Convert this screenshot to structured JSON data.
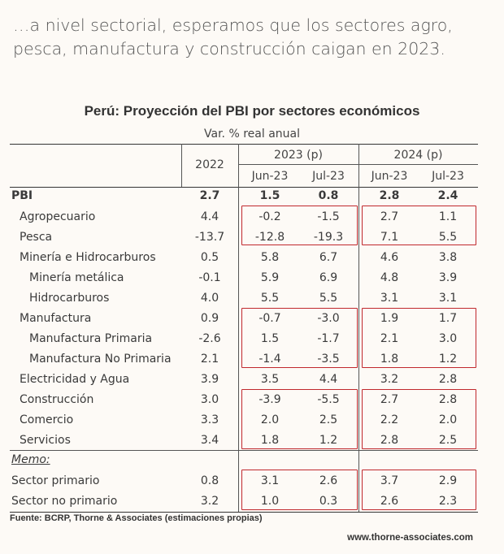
{
  "headline": "…a nivel sectorial, esperamos que los sectores agro, pesca, manufactura y construcción caigan en 2023.",
  "table": {
    "title": "Perú: Proyección del PBI por sectores económicos",
    "subtitle": "Var. % real anual",
    "col_2022": "2022",
    "group_2023": "2023 (p)",
    "group_2024": "2024 (p)",
    "sub_jun23_a": "Jun-23",
    "sub_jul23_a": "Jul-23",
    "sub_jun23_b": "Jun-23",
    "sub_jul23_b": "Jul-23",
    "rows": [
      {
        "label": "PBI",
        "v": [
          "2.7",
          "1.5",
          "0.8",
          "2.8",
          "2.4"
        ]
      },
      {
        "label": "Agropecuario",
        "v": [
          "4.4",
          "-0.2",
          "-1.5",
          "2.7",
          "1.1"
        ]
      },
      {
        "label": "Pesca",
        "v": [
          "-13.7",
          "-12.8",
          "-19.3",
          "7.1",
          "5.5"
        ]
      },
      {
        "label": "Minería e Hidrocarburos",
        "v": [
          "0.5",
          "5.8",
          "6.7",
          "4.6",
          "3.8"
        ]
      },
      {
        "label": "Minería metálica",
        "v": [
          "-0.1",
          "5.9",
          "6.9",
          "4.8",
          "3.9"
        ]
      },
      {
        "label": "Hidrocarburos",
        "v": [
          "4.0",
          "5.5",
          "5.5",
          "3.1",
          "3.1"
        ]
      },
      {
        "label": "Manufactura",
        "v": [
          "0.9",
          "-0.7",
          "-3.0",
          "1.9",
          "1.7"
        ]
      },
      {
        "label": "Manufactura Primaria",
        "v": [
          "-2.6",
          "1.5",
          "-1.7",
          "2.1",
          "3.0"
        ]
      },
      {
        "label": "Manufactura No Primaria",
        "v": [
          "2.1",
          "-1.4",
          "-3.5",
          "1.8",
          "1.2"
        ]
      },
      {
        "label": "Electricidad y Agua",
        "v": [
          "3.9",
          "3.5",
          "4.4",
          "3.2",
          "2.8"
        ]
      },
      {
        "label": "Construcción",
        "v": [
          "3.0",
          "-3.9",
          "-5.5",
          "2.7",
          "2.8"
        ]
      },
      {
        "label": "Comercio",
        "v": [
          "3.3",
          "2.0",
          "2.5",
          "2.2",
          "2.0"
        ]
      },
      {
        "label": "Servicios",
        "v": [
          "3.4",
          "1.8",
          "1.2",
          "2.8",
          "2.5"
        ]
      }
    ],
    "memo_label": "Memo:",
    "memo_rows": [
      {
        "label": "Sector primario",
        "v": [
          "0.8",
          "3.1",
          "2.6",
          "3.7",
          "2.9"
        ]
      },
      {
        "label": "Sector no primario",
        "v": [
          "3.2",
          "1.0",
          "0.3",
          "2.6",
          "2.3"
        ]
      }
    ]
  },
  "source": "Fuente: BCRP, Thorne & Associates (estimaciones propias)",
  "website": "www.thorne-associates.com",
  "colors": {
    "highlight_box": "#c0282d",
    "background": "#fdfaf6"
  }
}
